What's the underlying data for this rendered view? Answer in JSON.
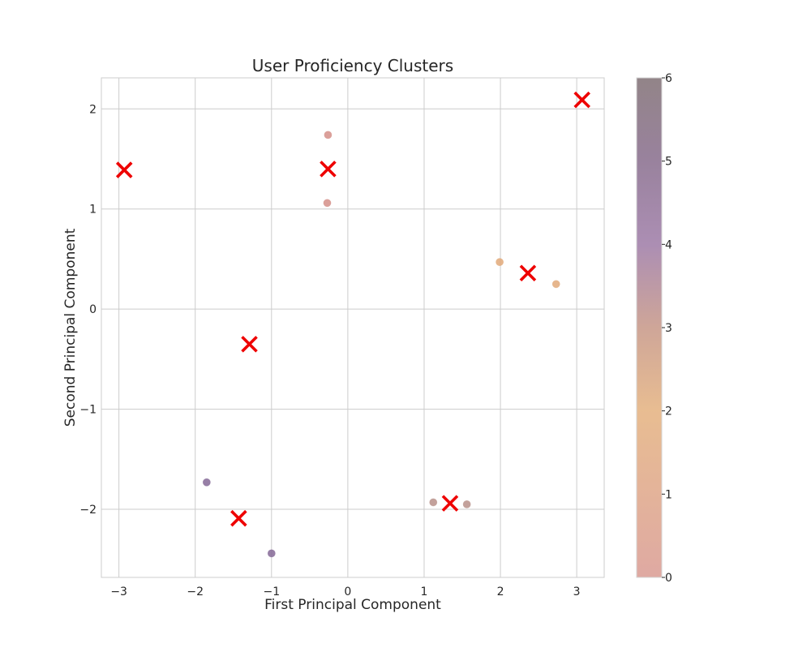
{
  "chart_data": {
    "type": "scatter",
    "title": "User Proficiency Clusters",
    "xlabel": "First Principal Component",
    "ylabel": "Second Principal Component",
    "xlim": [
      -3.23,
      3.36
    ],
    "ylim": [
      -2.68,
      2.31
    ],
    "x_ticks": [
      -3,
      -2,
      -1,
      0,
      1,
      2,
      3
    ],
    "y_ticks": [
      -2,
      -1,
      0,
      1,
      2
    ],
    "grid": true,
    "points": [
      {
        "x": -0.26,
        "y": 1.74,
        "cluster": 0
      },
      {
        "x": -0.27,
        "y": 1.06,
        "cluster": 0
      },
      {
        "x": 1.99,
        "y": 0.47,
        "cluster": 2
      },
      {
        "x": 2.73,
        "y": 0.25,
        "cluster": 2
      },
      {
        "x": 1.12,
        "y": -1.93,
        "cluster": 3
      },
      {
        "x": 1.56,
        "y": -1.95,
        "cluster": 3
      },
      {
        "x": -1.85,
        "y": -1.73,
        "cluster": 5
      },
      {
        "x": -1.0,
        "y": -2.44,
        "cluster": 5
      }
    ],
    "centroids": [
      {
        "x": -0.26,
        "y": 1.4
      },
      {
        "x": 2.36,
        "y": 0.36
      },
      {
        "x": 1.34,
        "y": -1.94
      },
      {
        "x": -1.43,
        "y": -2.09
      },
      {
        "x": -1.29,
        "y": -0.35
      },
      {
        "x": -2.93,
        "y": 1.39
      },
      {
        "x": 3.07,
        "y": 2.09
      }
    ],
    "colorbar": {
      "min": 0,
      "max": 6,
      "ticks": [
        0,
        1,
        2,
        3,
        4,
        5,
        6
      ],
      "stops": [
        {
          "value": 0,
          "color": "#d99a92"
        },
        {
          "value": 2,
          "color": "#e4b17e"
        },
        {
          "value": 3,
          "color": "#c69686"
        },
        {
          "value": 4,
          "color": "#9d7aa6"
        },
        {
          "value": 5,
          "color": "#876c8c"
        },
        {
          "value": 6,
          "color": "#7f6e73"
        }
      ],
      "alpha": 0.85
    },
    "point_colors": {
      "0": "#d58f88",
      "2": "#e2a979",
      "3": "#b8918a",
      "5": "#856997"
    },
    "centroid_color": "#ee0000",
    "grid_color": "#cccccc"
  }
}
